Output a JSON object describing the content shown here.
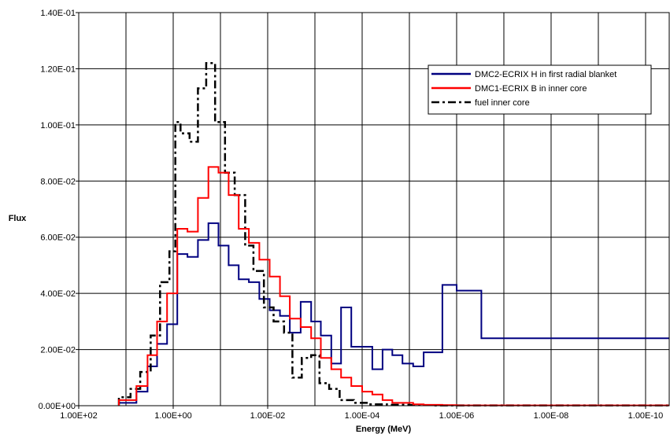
{
  "chart_data": {
    "type": "line",
    "title": "",
    "xlabel": "Energy (MeV)",
    "ylabel": "Flux",
    "x_scale": "log",
    "x_direction": "decreasing",
    "xlim": [
      100,
      3.16e-11
    ],
    "ylim": [
      0,
      0.14
    ],
    "x_ticks": [
      {
        "value": 100,
        "label": "1.00E+02"
      },
      {
        "value": 1,
        "label": "1.00E+00"
      },
      {
        "value": 0.01,
        "label": "1.00E-02"
      },
      {
        "value": 0.0001,
        "label": "1.00E-04"
      },
      {
        "value": 1e-06,
        "label": "1.00E-06"
      },
      {
        "value": 1e-08,
        "label": "1.00E-08"
      },
      {
        "value": 1e-10,
        "label": "1.00E-10"
      }
    ],
    "x_minor_grid": [
      10,
      0.1,
      0.001,
      1e-05,
      1e-07,
      1e-09
    ],
    "y_ticks": [
      {
        "value": 0,
        "label": "0.00E+00"
      },
      {
        "value": 0.02,
        "label": "2.00E-02"
      },
      {
        "value": 0.04,
        "label": "4.00E-02"
      },
      {
        "value": 0.06,
        "label": "6.00E-02"
      },
      {
        "value": 0.08,
        "label": "8.00E-02"
      },
      {
        "value": 0.1,
        "label": "1.00E-01"
      },
      {
        "value": 0.12,
        "label": "1.20E-01"
      },
      {
        "value": 0.14,
        "label": "1.40E-01"
      }
    ],
    "grid": true,
    "legend_position": "top-right",
    "series": [
      {
        "name": "DMC2-ECRIX H in first radial blanket",
        "color": "#000080",
        "dash": "solid",
        "step_x": [
          14.1,
          6.0,
          3.5,
          2.2,
          1.35,
          0.82,
          0.5,
          0.3,
          0.18,
          0.11,
          0.067,
          0.041,
          0.025,
          0.015,
          0.0091,
          0.0055,
          0.0034,
          0.002,
          0.0012,
          0.00075,
          0.00045,
          0.00028,
          0.00017,
          0.0001,
          6.1e-05,
          3.7e-05,
          2.3e-05,
          1.4e-05,
          8.3e-06,
          5e-06,
          2e-06,
          1e-06,
          3e-07,
          3.16e-11
        ],
        "values": [
          0.001,
          0.005,
          0.014,
          0.022,
          0.029,
          0.054,
          0.053,
          0.059,
          0.065,
          0.057,
          0.05,
          0.045,
          0.044,
          0.038,
          0.034,
          0.032,
          0.026,
          0.037,
          0.03,
          0.025,
          0.015,
          0.035,
          0.021,
          0.021,
          0.013,
          0.02,
          0.018,
          0.015,
          0.014,
          0.019,
          0.043,
          0.041,
          0.024
        ]
      },
      {
        "name": "DMC1-ECRIX B in inner core",
        "color": "#ff0000",
        "dash": "solid",
        "step_x": [
          14.1,
          6.0,
          3.5,
          2.2,
          1.35,
          0.82,
          0.5,
          0.3,
          0.18,
          0.11,
          0.067,
          0.041,
          0.025,
          0.015,
          0.0091,
          0.0055,
          0.0034,
          0.002,
          0.0012,
          0.00075,
          0.00045,
          0.00028,
          0.00017,
          0.0001,
          6.1e-05,
          3.7e-05,
          2.3e-05,
          1.4e-05,
          8.3e-06,
          5e-06,
          2e-06,
          1e-06,
          3e-07,
          3.16e-11
        ],
        "values": [
          0.002,
          0.007,
          0.018,
          0.03,
          0.04,
          0.063,
          0.062,
          0.074,
          0.085,
          0.083,
          0.075,
          0.063,
          0.058,
          0.052,
          0.046,
          0.039,
          0.031,
          0.028,
          0.024,
          0.017,
          0.013,
          0.01,
          0.007,
          0.005,
          0.004,
          0.002,
          0.001,
          0.001,
          0.0005,
          0.0003,
          0.0002,
          0.0001,
          0.0001
        ]
      },
      {
        "name": "fuel inner core",
        "color": "#000000",
        "dash": "dashdot",
        "step_x": [
          14.1,
          8.0,
          5.0,
          3.0,
          1.9,
          1.2,
          0.9,
          0.7,
          0.45,
          0.3,
          0.2,
          0.13,
          0.08,
          0.05,
          0.03,
          0.02,
          0.012,
          0.0075,
          0.0045,
          0.003,
          0.0019,
          0.0012,
          0.0008,
          0.0005,
          0.0003,
          0.00015,
          8e-05,
          3e-05,
          1e-05,
          3e-06,
          3.16e-11
        ],
        "values": [
          0.003,
          0.006,
          0.012,
          0.025,
          0.044,
          0.055,
          0.101,
          0.097,
          0.094,
          0.113,
          0.122,
          0.101,
          0.083,
          0.075,
          0.057,
          0.048,
          0.035,
          0.03,
          0.026,
          0.01,
          0.017,
          0.018,
          0.008,
          0.006,
          0.002,
          0.001,
          0.0005,
          0.0003,
          0.0002,
          0.0001
        ]
      }
    ]
  }
}
